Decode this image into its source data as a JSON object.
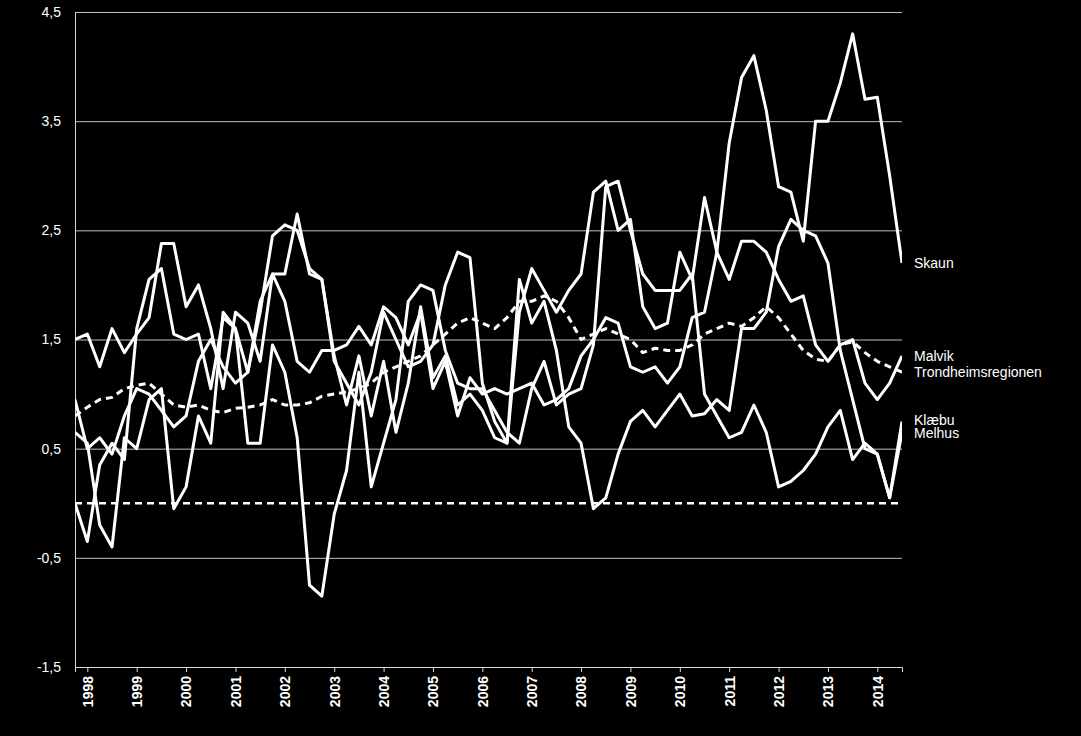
{
  "chart_data": {
    "type": "line",
    "categories": [
      null,
      "1998",
      null,
      null,
      null,
      "1999",
      null,
      null,
      null,
      "2000",
      null,
      null,
      null,
      "2001",
      null,
      null,
      null,
      "2002",
      null,
      null,
      null,
      "2003",
      null,
      null,
      null,
      "2004",
      null,
      null,
      null,
      "2005",
      null,
      null,
      null,
      "2006",
      null,
      null,
      null,
      "2007",
      null,
      null,
      null,
      "2008",
      null,
      null,
      null,
      "2009",
      null,
      null,
      null,
      "2010",
      null,
      null,
      null,
      "2011",
      null,
      null,
      null,
      "2012",
      null,
      null,
      null,
      "2013",
      null,
      null,
      null,
      "2014",
      null,
      null
    ],
    "ylim": [
      -1.5,
      4.5
    ],
    "yticks": [
      {
        "value": -1.5,
        "label": "-1,5"
      },
      {
        "value": -0.5,
        "label": "-0,5"
      },
      {
        "value": 0.5,
        "label": "0,5"
      },
      {
        "value": 1.5,
        "label": "1,5"
      },
      {
        "value": 2.5,
        "label": "2,5"
      },
      {
        "value": 3.5,
        "label": "3,5"
      },
      {
        "value": 4.5,
        "label": "4,5"
      }
    ],
    "grid": true,
    "reference_lines": [
      {
        "value": 0,
        "line_style": "dashed"
      }
    ],
    "series": [
      {
        "name": "Skaun",
        "color": "#ffffff",
        "line_style": "solid",
        "values": [
          0.0,
          -0.35,
          0.35,
          0.55,
          0.4,
          1.6,
          2.05,
          2.15,
          1.55,
          1.5,
          1.55,
          1.05,
          1.7,
          1.6,
          1.2,
          1.85,
          2.1,
          2.1,
          2.65,
          2.1,
          2.05,
          1.3,
          1.1,
          0.9,
          1.2,
          1.75,
          1.5,
          1.25,
          1.3,
          1.45,
          2.0,
          2.3,
          2.25,
          1.1,
          0.75,
          0.55,
          1.75,
          2.15,
          1.95,
          1.75,
          1.95,
          2.1,
          2.85,
          2.95,
          2.5,
          2.6,
          1.8,
          1.6,
          1.65,
          2.3,
          2.05,
          2.8,
          2.3,
          3.3,
          3.9,
          4.1,
          3.6,
          2.9,
          2.85,
          2.4,
          3.5,
          3.5,
          3.85,
          4.3,
          3.7,
          3.72,
          3.0,
          2.2
        ]
      },
      {
        "name": "Malvik",
        "color": "#ffffff",
        "line_style": "solid",
        "values": [
          1.5,
          1.55,
          1.25,
          1.6,
          1.38,
          1.55,
          1.7,
          2.38,
          2.38,
          1.8,
          2.0,
          1.6,
          1.05,
          1.75,
          1.65,
          1.3,
          2.1,
          1.85,
          1.3,
          1.2,
          1.4,
          1.4,
          1.45,
          1.62,
          1.45,
          1.8,
          1.7,
          1.45,
          1.75,
          1.05,
          1.3,
          0.8,
          1.15,
          1.0,
          1.05,
          1.0,
          1.05,
          1.1,
          0.9,
          0.95,
          1.05,
          1.35,
          1.5,
          1.7,
          1.65,
          1.25,
          1.2,
          1.25,
          1.1,
          1.25,
          1.7,
          1.75,
          2.3,
          2.05,
          2.4,
          2.4,
          2.3,
          2.05,
          1.85,
          1.9,
          1.45,
          1.3,
          1.45,
          1.5,
          1.1,
          0.95,
          1.1,
          1.35
        ]
      },
      {
        "name": "Trondheimsregionen",
        "color": "#ffffff",
        "line_style": "dashed",
        "values": [
          0.8,
          0.88,
          0.95,
          0.97,
          1.05,
          1.08,
          1.1,
          1.0,
          0.9,
          0.88,
          0.9,
          0.85,
          0.83,
          0.87,
          0.88,
          0.9,
          0.95,
          0.9,
          0.9,
          0.92,
          0.98,
          1.0,
          1.02,
          1.05,
          1.1,
          1.2,
          1.25,
          1.3,
          1.35,
          1.45,
          1.55,
          1.65,
          1.7,
          1.65,
          1.6,
          1.7,
          1.85,
          1.85,
          1.9,
          1.85,
          1.7,
          1.5,
          1.55,
          1.6,
          1.55,
          1.5,
          1.38,
          1.42,
          1.4,
          1.4,
          1.45,
          1.55,
          1.6,
          1.65,
          1.62,
          1.7,
          1.8,
          1.7,
          1.55,
          1.4,
          1.32,
          1.3,
          1.45,
          1.48,
          1.38,
          1.3,
          1.25,
          1.2
        ]
      },
      {
        "name": "Klæbu",
        "color": "#ffffff",
        "line_style": "solid",
        "values": [
          0.95,
          0.5,
          0.6,
          0.45,
          0.8,
          1.05,
          1.0,
          0.85,
          0.7,
          0.8,
          1.3,
          1.5,
          1.25,
          1.1,
          1.2,
          1.75,
          2.45,
          2.55,
          2.5,
          2.15,
          2.05,
          1.35,
          0.9,
          1.35,
          0.8,
          1.3,
          0.65,
          1.1,
          1.8,
          1.15,
          1.35,
          0.9,
          1.0,
          0.85,
          0.6,
          0.55,
          2.05,
          1.65,
          1.85,
          1.4,
          0.7,
          0.55,
          -0.05,
          0.05,
          0.45,
          0.75,
          0.85,
          0.7,
          0.85,
          1.0,
          0.8,
          0.82,
          0.95,
          0.85,
          1.6,
          1.6,
          1.75,
          2.35,
          2.6,
          2.5,
          2.45,
          2.2,
          1.4,
          0.95,
          0.5,
          0.45,
          0.05,
          0.75
        ]
      },
      {
        "name": "Melhus",
        "color": "#ffffff",
        "line_style": "solid",
        "values": [
          0.65,
          0.55,
          -0.2,
          -0.4,
          0.6,
          0.5,
          0.95,
          1.05,
          -0.05,
          0.15,
          0.8,
          0.55,
          1.75,
          1.6,
          0.55,
          0.55,
          1.45,
          1.2,
          0.6,
          -0.75,
          -0.85,
          -0.1,
          0.3,
          1.2,
          0.15,
          0.55,
          0.95,
          1.85,
          2.0,
          1.95,
          1.4,
          1.1,
          1.05,
          1.05,
          0.85,
          0.65,
          0.55,
          1.05,
          1.3,
          0.9,
          1.0,
          1.05,
          1.45,
          2.9,
          2.95,
          2.5,
          2.1,
          1.95,
          1.95,
          1.95,
          2.1,
          1.0,
          0.8,
          0.6,
          0.65,
          0.9,
          0.65,
          0.15,
          0.2,
          0.3,
          0.45,
          0.7,
          0.85,
          0.4,
          0.55,
          0.45,
          0.05,
          0.65
        ]
      }
    ]
  }
}
